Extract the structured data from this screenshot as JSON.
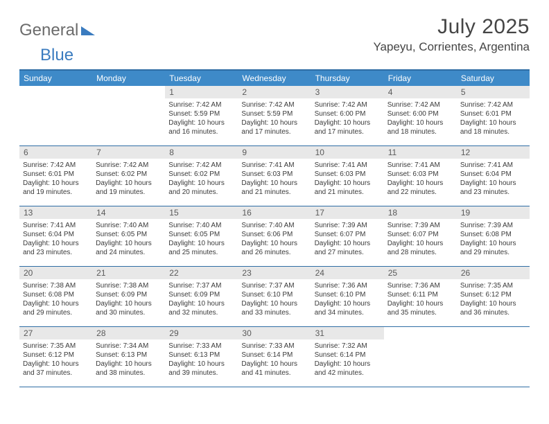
{
  "logo": {
    "word1": "General",
    "word2": "Blue"
  },
  "title": "July 2025",
  "location": "Yapeyu, Corrientes, Argentina",
  "colors": {
    "header_bg": "#3e8ac8",
    "header_text": "#ffffff",
    "rule": "#2e6da4",
    "daynum_bg": "#e8e8e8",
    "text": "#3a3a3a",
    "logo_gray": "#6b6b6b",
    "logo_blue": "#3a7bbf"
  },
  "days_of_week": [
    "Sunday",
    "Monday",
    "Tuesday",
    "Wednesday",
    "Thursday",
    "Friday",
    "Saturday"
  ],
  "calendar": {
    "first_weekday_index": 2,
    "num_days": 31
  },
  "cells": {
    "1": {
      "sunrise": "7:42 AM",
      "sunset": "5:59 PM",
      "daylight": "10 hours and 16 minutes."
    },
    "2": {
      "sunrise": "7:42 AM",
      "sunset": "5:59 PM",
      "daylight": "10 hours and 17 minutes."
    },
    "3": {
      "sunrise": "7:42 AM",
      "sunset": "6:00 PM",
      "daylight": "10 hours and 17 minutes."
    },
    "4": {
      "sunrise": "7:42 AM",
      "sunset": "6:00 PM",
      "daylight": "10 hours and 18 minutes."
    },
    "5": {
      "sunrise": "7:42 AM",
      "sunset": "6:01 PM",
      "daylight": "10 hours and 18 minutes."
    },
    "6": {
      "sunrise": "7:42 AM",
      "sunset": "6:01 PM",
      "daylight": "10 hours and 19 minutes."
    },
    "7": {
      "sunrise": "7:42 AM",
      "sunset": "6:02 PM",
      "daylight": "10 hours and 19 minutes."
    },
    "8": {
      "sunrise": "7:42 AM",
      "sunset": "6:02 PM",
      "daylight": "10 hours and 20 minutes."
    },
    "9": {
      "sunrise": "7:41 AM",
      "sunset": "6:03 PM",
      "daylight": "10 hours and 21 minutes."
    },
    "10": {
      "sunrise": "7:41 AM",
      "sunset": "6:03 PM",
      "daylight": "10 hours and 21 minutes."
    },
    "11": {
      "sunrise": "7:41 AM",
      "sunset": "6:03 PM",
      "daylight": "10 hours and 22 minutes."
    },
    "12": {
      "sunrise": "7:41 AM",
      "sunset": "6:04 PM",
      "daylight": "10 hours and 23 minutes."
    },
    "13": {
      "sunrise": "7:41 AM",
      "sunset": "6:04 PM",
      "daylight": "10 hours and 23 minutes."
    },
    "14": {
      "sunrise": "7:40 AM",
      "sunset": "6:05 PM",
      "daylight": "10 hours and 24 minutes."
    },
    "15": {
      "sunrise": "7:40 AM",
      "sunset": "6:05 PM",
      "daylight": "10 hours and 25 minutes."
    },
    "16": {
      "sunrise": "7:40 AM",
      "sunset": "6:06 PM",
      "daylight": "10 hours and 26 minutes."
    },
    "17": {
      "sunrise": "7:39 AM",
      "sunset": "6:07 PM",
      "daylight": "10 hours and 27 minutes."
    },
    "18": {
      "sunrise": "7:39 AM",
      "sunset": "6:07 PM",
      "daylight": "10 hours and 28 minutes."
    },
    "19": {
      "sunrise": "7:39 AM",
      "sunset": "6:08 PM",
      "daylight": "10 hours and 29 minutes."
    },
    "20": {
      "sunrise": "7:38 AM",
      "sunset": "6:08 PM",
      "daylight": "10 hours and 29 minutes."
    },
    "21": {
      "sunrise": "7:38 AM",
      "sunset": "6:09 PM",
      "daylight": "10 hours and 30 minutes."
    },
    "22": {
      "sunrise": "7:37 AM",
      "sunset": "6:09 PM",
      "daylight": "10 hours and 32 minutes."
    },
    "23": {
      "sunrise": "7:37 AM",
      "sunset": "6:10 PM",
      "daylight": "10 hours and 33 minutes."
    },
    "24": {
      "sunrise": "7:36 AM",
      "sunset": "6:10 PM",
      "daylight": "10 hours and 34 minutes."
    },
    "25": {
      "sunrise": "7:36 AM",
      "sunset": "6:11 PM",
      "daylight": "10 hours and 35 minutes."
    },
    "26": {
      "sunrise": "7:35 AM",
      "sunset": "6:12 PM",
      "daylight": "10 hours and 36 minutes."
    },
    "27": {
      "sunrise": "7:35 AM",
      "sunset": "6:12 PM",
      "daylight": "10 hours and 37 minutes."
    },
    "28": {
      "sunrise": "7:34 AM",
      "sunset": "6:13 PM",
      "daylight": "10 hours and 38 minutes."
    },
    "29": {
      "sunrise": "7:33 AM",
      "sunset": "6:13 PM",
      "daylight": "10 hours and 39 minutes."
    },
    "30": {
      "sunrise": "7:33 AM",
      "sunset": "6:14 PM",
      "daylight": "10 hours and 41 minutes."
    },
    "31": {
      "sunrise": "7:32 AM",
      "sunset": "6:14 PM",
      "daylight": "10 hours and 42 minutes."
    }
  },
  "labels": {
    "sunrise_prefix": "Sunrise: ",
    "sunset_prefix": "Sunset: ",
    "daylight_prefix": "Daylight: "
  }
}
